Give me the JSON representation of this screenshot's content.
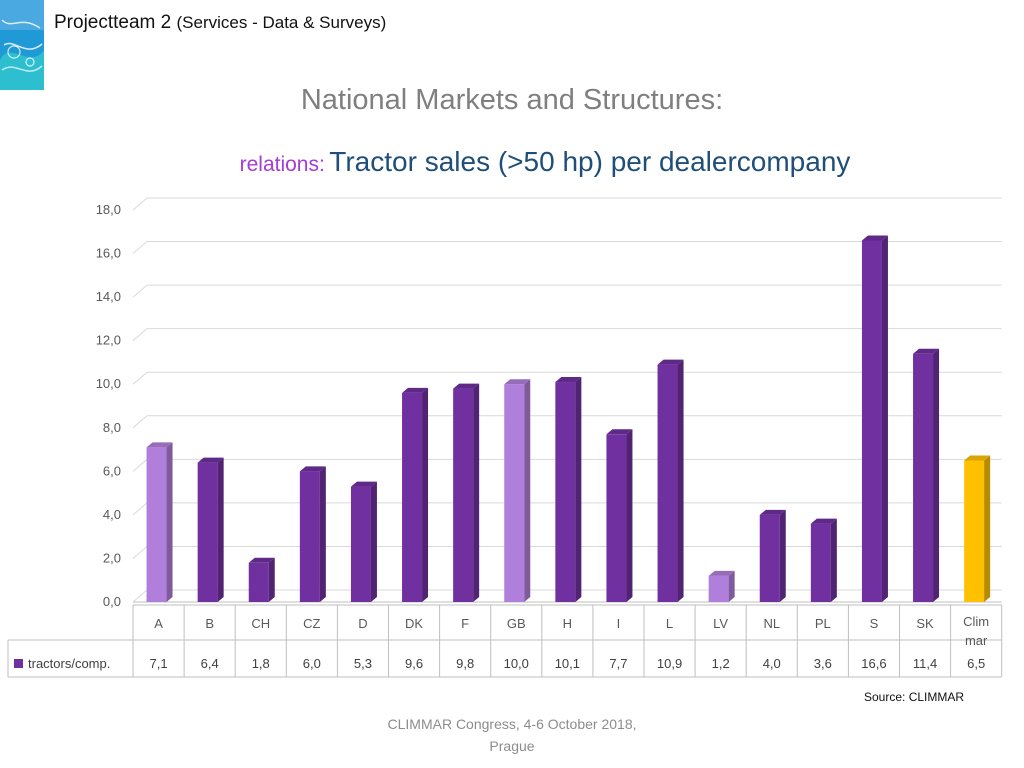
{
  "header": {
    "title": "Projectteam 2",
    "subtitle": "(Services - Data & Surveys)"
  },
  "slide": {
    "title": "National Markets and Structures:",
    "subtitle_lead": "relations:",
    "subtitle_main": "Tractor sales (>50 hp) per dealercompany"
  },
  "colors": {
    "highlight": "#b07fdc",
    "dark": "#7030a0",
    "gold": "#ffc000",
    "title_gray": "#7f7f7f",
    "subtitle_blue": "#1f4e79",
    "subtitle_purple": "#a53ad6"
  },
  "chart_data": {
    "type": "bar",
    "categories": [
      "A",
      "B",
      "CH",
      "CZ",
      "D",
      "DK",
      "F",
      "GB",
      "H",
      "I",
      "L",
      "LV",
      "NL",
      "PL",
      "S",
      "SK",
      "Clim mar"
    ],
    "series": [
      {
        "name": "tractors/comp.",
        "values": [
          7.1,
          6.4,
          1.8,
          6.0,
          5.3,
          9.6,
          9.8,
          10.0,
          10.1,
          7.7,
          10.9,
          1.2,
          4.0,
          3.6,
          16.6,
          11.4,
          6.5
        ]
      }
    ],
    "data_labels": [
      "7,1",
      "6,4",
      "1,8",
      "6,0",
      "5,3",
      "9,6",
      "9,8",
      "10,0",
      "10,1",
      "7,7",
      "10,9",
      "1,2",
      "4,0",
      "3,6",
      "16,6",
      "11,4",
      "6,5"
    ],
    "bar_colors": [
      "#b07fdc",
      "#7030a0",
      "#7030a0",
      "#7030a0",
      "#7030a0",
      "#7030a0",
      "#7030a0",
      "#b07fdc",
      "#7030a0",
      "#7030a0",
      "#7030a0",
      "#b07fdc",
      "#7030a0",
      "#7030a0",
      "#7030a0",
      "#7030a0",
      "#ffc000"
    ],
    "ylim": [
      0,
      18
    ],
    "yticks": [
      "0,0",
      "2,0",
      "4,0",
      "6,0",
      "8,0",
      "10,0",
      "12,0",
      "14,0",
      "16,0",
      "18,0"
    ],
    "grid": true,
    "data_table": true,
    "view": "3d"
  },
  "source": "Source: CLIMMAR",
  "footer": {
    "line1": "CLIMMAR Congress, 4-6 October 2018,",
    "line2": "Prague"
  }
}
